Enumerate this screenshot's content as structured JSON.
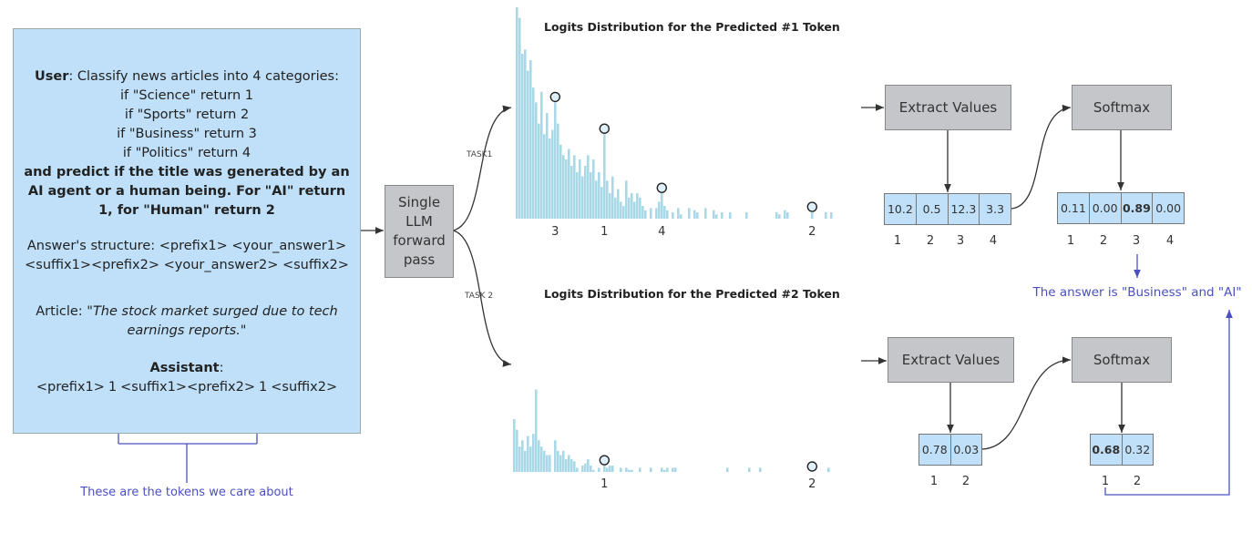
{
  "prompt": {
    "user_label": "User",
    "user_text": ": Classify news articles into 4 categories:",
    "rules": [
      "if \"Science\" return 1",
      "if \"Sports\" return 2",
      "if \"Business\" return 3",
      "if \"Politics\" return 4"
    ],
    "bold_lines": [
      "and predict if the title was generated by an",
      "AI agent or a human being. For \"AI\" return",
      "1, for \"Human\" return 2"
    ],
    "structure_lines": [
      "Answer's structure: <prefix1> <your_answer1>",
      "<suffix1><prefix2> <your_answer2> <suffix2>"
    ],
    "article_label": "Article: ",
    "article_text_1": "\"The stock market surged due to tech",
    "article_text_2": "earnings reports.\"",
    "assistant_label": "Assistant",
    "assistant_colon": ":",
    "assistant_parts": [
      "<prefix1>",
      "1",
      "<suffix1><prefix2>",
      "1",
      "<suffix2>"
    ],
    "caption": "These are the tokens we care about"
  },
  "llm_box": {
    "lines": [
      "Single",
      "LLM",
      "forward",
      "pass"
    ]
  },
  "tasks": [
    "TASK1",
    "TASK 2"
  ],
  "colors": {
    "bar": "#a9d8e6",
    "cell": "#bfe0f8",
    "box": "#c4c6c9",
    "annotation": "#4b50c0"
  },
  "chart_data": [
    {
      "type": "bar",
      "title": "Logits Distribution for the Predicted #1 Token",
      "relative_values": [
        100,
        95,
        78,
        80,
        70,
        75,
        62,
        55,
        45,
        60,
        40,
        50,
        38,
        42,
        55,
        45,
        35,
        30,
        28,
        33,
        25,
        30,
        22,
        28,
        20,
        25,
        30,
        22,
        28,
        18,
        22,
        15,
        40,
        18,
        12,
        20,
        10,
        14,
        8,
        6,
        18,
        10,
        12,
        8,
        12,
        10,
        6,
        4,
        0,
        5,
        0,
        5,
        8,
        12,
        6,
        4,
        0,
        3,
        0,
        5,
        2,
        0,
        0,
        5,
        0,
        4,
        3,
        0,
        0,
        5,
        0,
        0,
        4,
        2,
        0,
        3,
        0,
        0,
        3,
        0,
        0,
        0,
        0,
        0,
        3,
        0,
        0,
        0,
        0,
        0,
        0,
        0,
        0,
        0,
        0,
        3,
        2,
        0,
        4,
        3,
        0,
        0,
        0,
        0,
        0,
        0,
        0,
        0,
        3,
        0,
        0,
        0,
        0,
        3,
        0,
        3
      ],
      "marked_tokens": [
        {
          "label": "3",
          "index": 14
        },
        {
          "label": "1",
          "index": 32
        },
        {
          "label": "4",
          "index": 53
        },
        {
          "label": "2",
          "index": 108
        }
      ]
    },
    {
      "type": "bar",
      "title": "Logits Distribution for the Predicted #2 Token",
      "relative_values": [
        25,
        20,
        12,
        15,
        10,
        17,
        12,
        18,
        39,
        15,
        12,
        10,
        8,
        8,
        0,
        15,
        10,
        8,
        10,
        6,
        8,
        6,
        5,
        2,
        0,
        3,
        4,
        6,
        3,
        1,
        0,
        2,
        0,
        3,
        2,
        3,
        3,
        0,
        0,
        2,
        0,
        2,
        1,
        1,
        0,
        0,
        2,
        0,
        0,
        0,
        2,
        0,
        0,
        0,
        2,
        1,
        2,
        0,
        2,
        2,
        0,
        0,
        0,
        0,
        0,
        0,
        0,
        0,
        0,
        0,
        0,
        0,
        0,
        0,
        0,
        0,
        0,
        0,
        2,
        0,
        0,
        0,
        0,
        0,
        0,
        0,
        2,
        0,
        0,
        0,
        2,
        0,
        0,
        0,
        0,
        0,
        0,
        0,
        0,
        0,
        0,
        0,
        0,
        0,
        0,
        0,
        0,
        0,
        0,
        0,
        0,
        0,
        0,
        0,
        0,
        2
      ],
      "marked_tokens": [
        {
          "label": "1",
          "index": 33
        },
        {
          "label": "2",
          "index": 109
        }
      ]
    }
  ],
  "pipeline1": {
    "extract_label": "Extract Values",
    "softmax_label": "Softmax",
    "values": [
      "10.2",
      "0.5",
      "12.3",
      "3.3"
    ],
    "value_indices": [
      "1",
      "2",
      "3",
      "4"
    ],
    "probs": [
      "0.11",
      "0.00",
      "0.89",
      "0.00"
    ],
    "bold_prob_index": 2,
    "prob_indices": [
      "1",
      "2",
      "3",
      "4"
    ]
  },
  "pipeline2": {
    "extract_label": "Extract Values",
    "softmax_label": "Softmax",
    "values": [
      "0.78",
      "0.03"
    ],
    "value_indices": [
      "1",
      "2"
    ],
    "probs": [
      "0.68",
      "0.32"
    ],
    "bold_prob_index": 0,
    "prob_indices": [
      "1",
      "2"
    ]
  },
  "answer": "The answer is \"Business\" and \"AI\""
}
